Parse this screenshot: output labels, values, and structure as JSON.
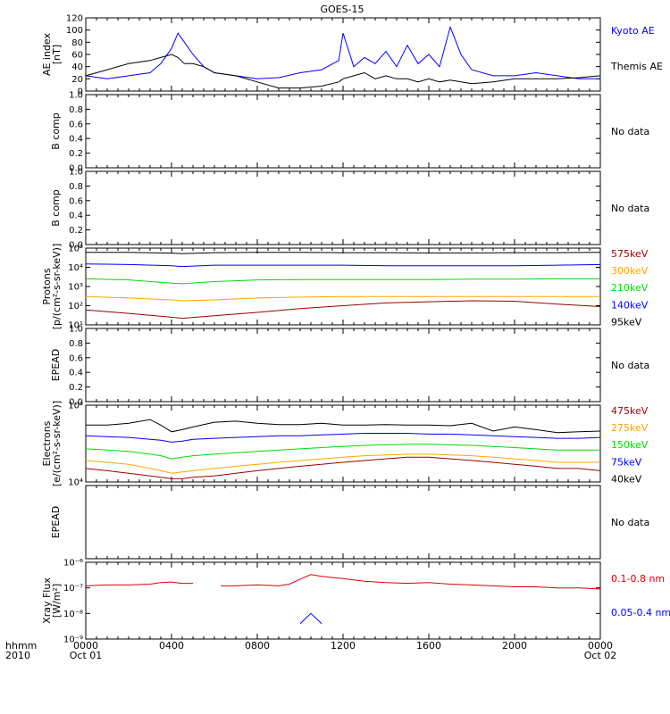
{
  "title": "GOES-15",
  "time_axis": {
    "corner_labels": [
      "hhmm",
      "2010"
    ],
    "ticks": [
      {
        "hhmm": "0000",
        "date": "Oct 01",
        "hour": 0
      },
      {
        "hhmm": "0400",
        "date": "",
        "hour": 4
      },
      {
        "hhmm": "0800",
        "date": "",
        "hour": 8
      },
      {
        "hhmm": "1200",
        "date": "",
        "hour": 12
      },
      {
        "hhmm": "1600",
        "date": "",
        "hour": 16
      },
      {
        "hhmm": "2000",
        "date": "",
        "hour": 20
      },
      {
        "hhmm": "0000",
        "date": "Oct 02",
        "hour": 24
      }
    ],
    "range_hours": [
      0,
      24
    ]
  },
  "colors": {
    "black": "#000000",
    "blue": "#0000ff",
    "red": "#cc0000",
    "orange": "#ffa500",
    "green": "#00dd00",
    "darkred": "#990000",
    "flare_red": "#dd0000"
  },
  "panels": [
    {
      "id": "ae",
      "ylabel": [
        "AE index",
        "[nT]"
      ],
      "ticks": [
        "0",
        "20",
        "40",
        "60",
        "80",
        "100",
        "120"
      ],
      "legend": [
        {
          "text": "Kyoto AE",
          "color": "#0000ff"
        },
        {
          "text": "Themis AE",
          "color": "#000000"
        }
      ]
    },
    {
      "id": "b1",
      "ylabel": [
        "B comp"
      ],
      "ticks": [
        "0.0",
        "0.2",
        "0.4",
        "0.6",
        "0.8",
        "1.0"
      ],
      "nodata": "No data"
    },
    {
      "id": "b2",
      "ylabel": [
        "B comp"
      ],
      "ticks": [
        "0.0",
        "0.2",
        "0.4",
        "0.6",
        "0.8",
        "1.0"
      ],
      "nodata": "No data"
    },
    {
      "id": "protons",
      "ylabel": [
        "Protons",
        "[p/(cm²-s-sr-keV)]"
      ],
      "ticks": [
        "10¹",
        "10²",
        "10³",
        "10⁴",
        "10⁵"
      ],
      "legend": [
        {
          "text": "575keV",
          "color": "#990000"
        },
        {
          "text": "300keV",
          "color": "#ffa500"
        },
        {
          "text": "210keV",
          "color": "#00dd00"
        },
        {
          "text": "140keV",
          "color": "#0000ff"
        },
        {
          "text": "95keV",
          "color": "#000000"
        }
      ]
    },
    {
      "id": "epead1",
      "ylabel": [
        "EPEAD"
      ],
      "ticks": [
        "0.0",
        "0.2",
        "0.4",
        "0.6",
        "0.8",
        "1.0"
      ],
      "nodata": "No data"
    },
    {
      "id": "electrons",
      "ylabel": [
        "Electrons",
        "[e/(cm²-s-sr-keV)]"
      ],
      "ticks": [
        "10⁴",
        "10⁵"
      ],
      "legend": [
        {
          "text": "475keV",
          "color": "#990000"
        },
        {
          "text": "275keV",
          "color": "#ffa500"
        },
        {
          "text": "150keV",
          "color": "#00dd00"
        },
        {
          "text": "75keV",
          "color": "#0000ff"
        },
        {
          "text": "40keV",
          "color": "#000000"
        }
      ]
    },
    {
      "id": "epead2",
      "ylabel": [
        "EPEAD"
      ],
      "ticks": [],
      "nodata": "No data"
    },
    {
      "id": "xray",
      "ylabel": [
        "Xray Flux",
        "[W/m²]"
      ],
      "ticks": [
        "10⁻⁹",
        "10⁻⁸",
        "10⁻⁷",
        "10⁻⁶"
      ],
      "legend": [
        {
          "text": "0.1-0.8 nm",
          "color": "#dd0000"
        },
        {
          "text": "0.05-0.4 nm",
          "color": "#0000ff"
        }
      ]
    }
  ],
  "chart_data": [
    {
      "type": "line",
      "panel": "ae",
      "xlabel": "",
      "ylim": [
        0,
        120
      ],
      "x": [
        0,
        1,
        2,
        3,
        3.5,
        4,
        4.3,
        4.6,
        5,
        5.5,
        6,
        7,
        8,
        9,
        10,
        11,
        11.8,
        12,
        12.5,
        13,
        13.5,
        14,
        14.5,
        15,
        15.5,
        16,
        16.5,
        17,
        17.5,
        18,
        19,
        20,
        21,
        22,
        23,
        24
      ],
      "series": [
        {
          "name": "Kyoto AE",
          "color": "#0000ff",
          "values": [
            25,
            20,
            25,
            30,
            45,
            70,
            95,
            80,
            60,
            40,
            30,
            25,
            20,
            22,
            30,
            35,
            50,
            95,
            40,
            55,
            45,
            65,
            40,
            75,
            45,
            60,
            40,
            105,
            60,
            35,
            25,
            25,
            30,
            25,
            20,
            20
          ]
        },
        {
          "name": "Themis AE",
          "color": "#000000",
          "values": [
            25,
            35,
            45,
            50,
            55,
            60,
            55,
            45,
            45,
            40,
            30,
            25,
            15,
            5,
            5,
            8,
            15,
            20,
            25,
            30,
            20,
            25,
            20,
            20,
            15,
            20,
            15,
            18,
            15,
            12,
            15,
            20,
            20,
            20,
            22,
            25
          ]
        }
      ]
    },
    {
      "type": "line",
      "panel": "protons",
      "yscale": "log",
      "ylim": [
        10,
        100000
      ],
      "x": [
        0,
        2,
        4,
        4.5,
        6,
        8,
        10,
        12,
        14,
        16,
        18,
        20,
        22,
        24
      ],
      "series": [
        {
          "name": "575keV",
          "color": "#990000",
          "values": [
            60,
            40,
            25,
            22,
            30,
            45,
            70,
            100,
            140,
            160,
            180,
            170,
            120,
            90
          ]
        },
        {
          "name": "300keV",
          "color": "#ffa500",
          "values": [
            300,
            250,
            200,
            180,
            200,
            250,
            280,
            300,
            300,
            300,
            300,
            300,
            300,
            300
          ]
        },
        {
          "name": "210keV",
          "color": "#00dd00",
          "values": [
            2500,
            2200,
            1500,
            1400,
            1800,
            2200,
            2300,
            2300,
            2300,
            2300,
            2400,
            2400,
            2500,
            2500
          ]
        },
        {
          "name": "140keV",
          "color": "#0000ff",
          "values": [
            15000,
            14000,
            12000,
            11000,
            13000,
            13000,
            13000,
            13000,
            12000,
            12000,
            12000,
            12000,
            13000,
            14000
          ]
        },
        {
          "name": "95keV",
          "color": "#000000",
          "values": [
            60000,
            60000,
            55000,
            52000,
            58000,
            60000,
            60000,
            58000,
            58000,
            56000,
            56000,
            58000,
            58000,
            60000
          ]
        }
      ]
    },
    {
      "type": "line",
      "panel": "electrons",
      "yscale": "log",
      "ylim": [
        10000,
        100000
      ],
      "x": [
        0,
        1,
        2,
        3,
        3.5,
        4,
        4.5,
        5,
        6,
        7,
        8,
        9,
        10,
        11,
        12,
        13,
        14,
        15,
        16,
        17,
        18,
        19,
        20,
        21,
        22,
        23,
        24
      ],
      "series": [
        {
          "name": "475keV",
          "color": "#990000",
          "values": [
            15000,
            14000,
            13000,
            12000,
            11500,
            11000,
            11000,
            11500,
            12000,
            13000,
            14000,
            15000,
            16000,
            17000,
            18000,
            19000,
            20000,
            21000,
            21000,
            20000,
            19000,
            18000,
            17000,
            16000,
            15000,
            15000,
            14000
          ]
        },
        {
          "name": "275keV",
          "color": "#ffa500",
          "values": [
            19000,
            18000,
            17000,
            15000,
            14000,
            13000,
            13500,
            14000,
            15000,
            16000,
            17000,
            18000,
            19000,
            20000,
            21000,
            22000,
            22500,
            23000,
            23000,
            22500,
            22000,
            21000,
            20000,
            19000,
            18000,
            18000,
            18000
          ]
        },
        {
          "name": "150keV",
          "color": "#00dd00",
          "values": [
            27000,
            26000,
            25000,
            23000,
            22000,
            20000,
            21000,
            22000,
            23000,
            24000,
            25000,
            26000,
            27000,
            28000,
            29000,
            30000,
            30500,
            31000,
            31000,
            30500,
            30000,
            29000,
            28000,
            27000,
            26000,
            26000,
            26000
          ]
        },
        {
          "name": "75keV",
          "color": "#0000ff",
          "values": [
            40000,
            39000,
            38000,
            36000,
            35000,
            33000,
            34000,
            36000,
            37000,
            38000,
            39000,
            40000,
            40000,
            41000,
            42000,
            43000,
            43000,
            43000,
            42000,
            42000,
            41000,
            40000,
            39000,
            38000,
            37000,
            37000,
            38000
          ]
        },
        {
          "name": "40keV",
          "color": "#000000",
          "values": [
            55000,
            55000,
            58000,
            65000,
            55000,
            45000,
            48000,
            52000,
            60000,
            62000,
            58000,
            56000,
            56000,
            58000,
            55000,
            55000,
            56000,
            55000,
            55000,
            54000,
            58000,
            46000,
            52000,
            48000,
            44000,
            45000,
            46000
          ]
        }
      ]
    },
    {
      "type": "line",
      "panel": "xray",
      "yscale": "log",
      "ylim": [
        1e-09,
        1e-06
      ],
      "x": [
        0,
        1,
        2,
        3,
        3.5,
        4,
        4.5,
        5,
        5.2,
        6.3,
        7,
        8,
        9,
        9.5,
        10,
        10.5,
        11,
        12,
        13,
        14,
        15,
        16,
        17,
        18,
        19,
        20,
        21,
        22,
        23,
        24
      ],
      "series": [
        {
          "name": "0.1-0.8 nm",
          "color": "#dd0000",
          "values": [
            1.2e-07,
            1.3e-07,
            1.3e-07,
            1.4e-07,
            1.6e-07,
            1.7e-07,
            1.5e-07,
            1.5e-07,
            null,
            1.2e-07,
            1.2e-07,
            1.3e-07,
            1.2e-07,
            1.4e-07,
            2.2e-07,
            3.3e-07,
            2.8e-07,
            2.3e-07,
            1.8e-07,
            1.6e-07,
            1.5e-07,
            1.6e-07,
            1.4e-07,
            1.3e-07,
            1.2e-07,
            1.1e-07,
            1.1e-07,
            1e-07,
            1e-07,
            9e-08
          ]
        },
        {
          "name": "0.05-0.4 nm",
          "color": "#0000ff",
          "values": [
            null,
            null,
            null,
            null,
            null,
            null,
            null,
            null,
            null,
            null,
            null,
            null,
            null,
            null,
            4e-09,
            1e-08,
            4e-09,
            null,
            null,
            null,
            null,
            null,
            null,
            null,
            null,
            null,
            null,
            null,
            null,
            null
          ]
        }
      ]
    }
  ]
}
